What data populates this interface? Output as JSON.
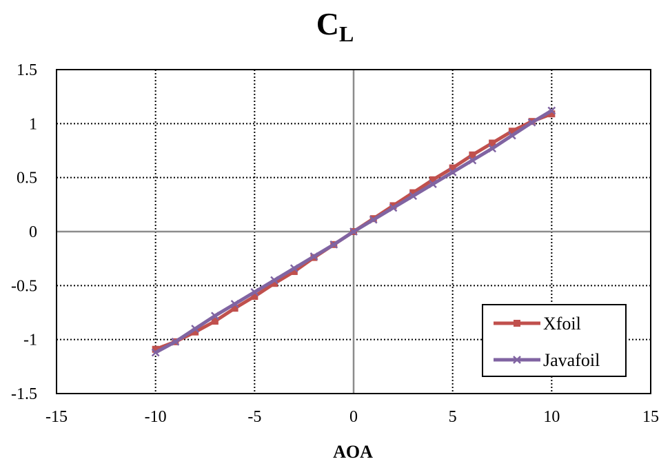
{
  "chart_data": {
    "type": "line",
    "title_main": "C",
    "title_sub": "L",
    "xlabel": "AOA",
    "ylabel": "",
    "xlim": [
      -15,
      15
    ],
    "ylim": [
      -1.5,
      1.5
    ],
    "xticks": [
      -15,
      -10,
      -5,
      0,
      5,
      10,
      15
    ],
    "yticks": [
      -1.5,
      -1,
      -0.5,
      0,
      0.5,
      1,
      1.5
    ],
    "xtick_labels": [
      "-15",
      "-10",
      "-5",
      "0",
      "5",
      "10",
      "15"
    ],
    "ytick_labels": [
      "-1.5",
      "-1",
      "-0.5",
      "0",
      "0.5",
      "1",
      "1.5"
    ],
    "grid": true,
    "legend_position": "bottom-right",
    "x": [
      -10,
      -9,
      -8,
      -7,
      -6,
      -5,
      -4,
      -3,
      -2,
      -1,
      0,
      1,
      2,
      3,
      4,
      5,
      6,
      7,
      8,
      9,
      10
    ],
    "series": [
      {
        "name": "Xfoil",
        "color": "#c0504d",
        "marker": "square",
        "values": [
          -1.09,
          -1.02,
          -0.93,
          -0.83,
          -0.71,
          -0.6,
          -0.48,
          -0.37,
          -0.24,
          -0.12,
          0.0,
          0.12,
          0.24,
          0.36,
          0.48,
          0.59,
          0.71,
          0.82,
          0.93,
          1.02,
          1.09
        ]
      },
      {
        "name": "Javafoil",
        "color": "#8064a2",
        "marker": "x",
        "values": [
          -1.12,
          -1.02,
          -0.9,
          -0.78,
          -0.67,
          -0.56,
          -0.45,
          -0.34,
          -0.23,
          -0.12,
          0.0,
          0.11,
          0.22,
          0.33,
          0.44,
          0.55,
          0.66,
          0.77,
          0.89,
          1.01,
          1.12
        ]
      }
    ]
  }
}
